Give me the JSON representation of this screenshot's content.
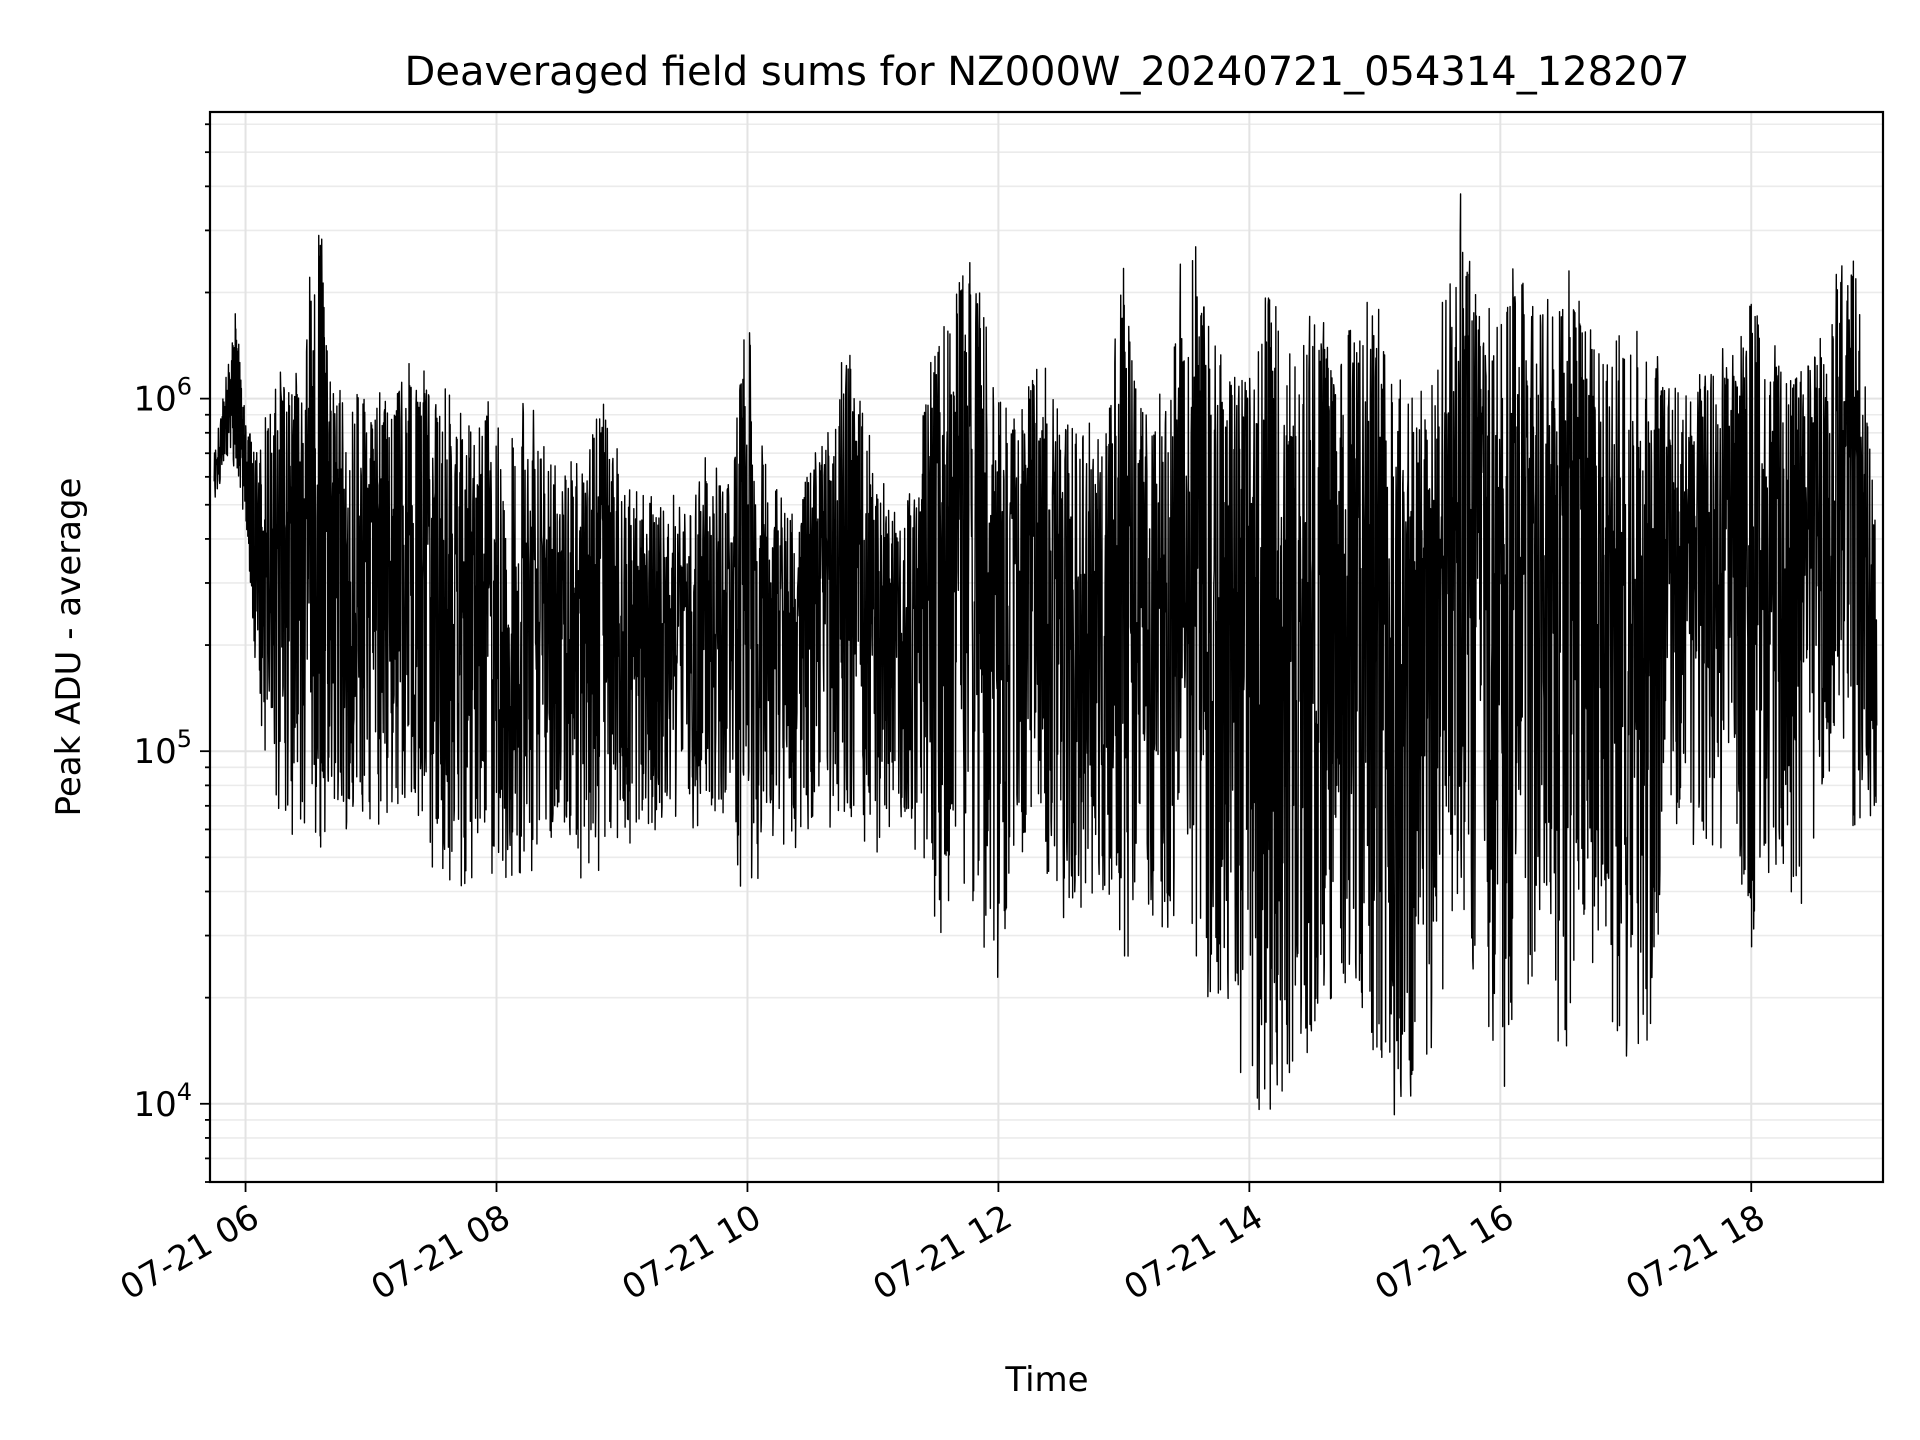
{
  "chart_data": {
    "type": "line",
    "title": "Deaveraged field sums for NZ000W_20240721_054314_128207",
    "xlabel": "Time",
    "ylabel": "Peak ADU - average",
    "yscale": "log",
    "ylim": [
      6000,
      6500000
    ],
    "xlim": [
      "2024-07-21 05:43",
      "2024-07-21 19:03"
    ],
    "grid": true,
    "line_color": "#000000",
    "x_ticks": [
      {
        "value": "2024-07-21 06:00",
        "label": "07-21 06"
      },
      {
        "value": "2024-07-21 08:00",
        "label": "07-21 08"
      },
      {
        "value": "2024-07-21 10:00",
        "label": "07-21 10"
      },
      {
        "value": "2024-07-21 12:00",
        "label": "07-21 12"
      },
      {
        "value": "2024-07-21 14:00",
        "label": "07-21 14"
      },
      {
        "value": "2024-07-21 16:00",
        "label": "07-21 16"
      },
      {
        "value": "2024-07-21 18:00",
        "label": "07-21 18"
      }
    ],
    "y_ticks": [
      {
        "value": 10000,
        "base": "10",
        "exp": "4"
      },
      {
        "value": 100000,
        "base": "10",
        "exp": "5"
      },
      {
        "value": 1000000,
        "base": "10",
        "exp": "6"
      }
    ],
    "series": [
      {
        "x": [
          "2024-07-21 05:45",
          "2024-07-21 05:55",
          "2024-07-21 06:00",
          "2024-07-21 06:05",
          "2024-07-21 06:15",
          "2024-07-21 06:25",
          "2024-07-21 06:35",
          "2024-07-21 06:40",
          "2024-07-21 06:50",
          "2024-07-21 07:00",
          "2024-07-21 07:10",
          "2024-07-21 07:20",
          "2024-07-21 07:30",
          "2024-07-21 07:40",
          "2024-07-21 07:50",
          "2024-07-21 08:00",
          "2024-07-21 08:10",
          "2024-07-21 08:20",
          "2024-07-21 08:30",
          "2024-07-21 08:40",
          "2024-07-21 08:50",
          "2024-07-21 09:00",
          "2024-07-21 09:10",
          "2024-07-21 09:20",
          "2024-07-21 09:30",
          "2024-07-21 09:40",
          "2024-07-21 09:50",
          "2024-07-21 10:00",
          "2024-07-21 10:10",
          "2024-07-21 10:20",
          "2024-07-21 10:30",
          "2024-07-21 10:40",
          "2024-07-21 10:50",
          "2024-07-21 11:00",
          "2024-07-21 11:10",
          "2024-07-21 11:20",
          "2024-07-21 11:30",
          "2024-07-21 11:40",
          "2024-07-21 11:50",
          "2024-07-21 12:00",
          "2024-07-21 12:10",
          "2024-07-21 12:20",
          "2024-07-21 12:30",
          "2024-07-21 12:40",
          "2024-07-21 12:50",
          "2024-07-21 13:00",
          "2024-07-21 13:10",
          "2024-07-21 13:20",
          "2024-07-21 13:30",
          "2024-07-21 13:40",
          "2024-07-21 13:50",
          "2024-07-21 14:00",
          "2024-07-21 14:10",
          "2024-07-21 14:20",
          "2024-07-21 14:30",
          "2024-07-21 14:40",
          "2024-07-21 14:50",
          "2024-07-21 15:00",
          "2024-07-21 15:10",
          "2024-07-21 15:20",
          "2024-07-21 15:30",
          "2024-07-21 15:40",
          "2024-07-21 15:50",
          "2024-07-21 16:00",
          "2024-07-21 16:10",
          "2024-07-21 16:20",
          "2024-07-21 16:30",
          "2024-07-21 16:40",
          "2024-07-21 16:50",
          "2024-07-21 17:00",
          "2024-07-21 17:10",
          "2024-07-21 17:20",
          "2024-07-21 17:30",
          "2024-07-21 17:40",
          "2024-07-21 17:50",
          "2024-07-21 18:00",
          "2024-07-21 18:10",
          "2024-07-21 18:20",
          "2024-07-21 18:30",
          "2024-07-21 18:40",
          "2024-07-21 18:50",
          "2024-07-21 19:00"
        ],
        "high": [
          700000,
          1900000,
          950000,
          700000,
          1200000,
          1250000,
          4500000,
          1300000,
          1200000,
          1100000,
          1100000,
          1500000,
          1100000,
          1050000,
          1050000,
          1000000,
          1000000,
          1050000,
          650000,
          700000,
          1100000,
          650000,
          600000,
          550000,
          550000,
          700000,
          600000,
          1800000,
          600000,
          500000,
          700000,
          1000000,
          1700000,
          700000,
          500000,
          600000,
          1700000,
          2400000,
          3200000,
          1000000,
          900000,
          1500000,
          1000000,
          900000,
          800000,
          2500000,
          900000,
          1100000,
          3400000,
          2000000,
          1200000,
          1400000,
          2200000,
          1500000,
          2200000,
          1400000,
          1700000,
          2000000,
          1300000,
          1300000,
          1500000,
          4200000,
          1800000,
          2000000,
          2700000,
          1800000,
          2500000,
          2000000,
          1500000,
          1600000,
          1600000,
          1200000,
          1000000,
          1600000,
          1300000,
          2000000,
          1500000,
          1300000,
          1600000,
          2300000,
          2900000,
          400000
        ],
        "low": [
          500000,
          600000,
          450000,
          150000,
          55000,
          55000,
          50000,
          60000,
          60000,
          60000,
          60000,
          55000,
          45000,
          40000,
          40000,
          40000,
          42000,
          45000,
          60000,
          40000,
          45000,
          55000,
          50000,
          55000,
          60000,
          60000,
          65000,
          30000,
          60000,
          50000,
          60000,
          60000,
          55000,
          50000,
          55000,
          50000,
          25000,
          45000,
          30000,
          20000,
          50000,
          55000,
          30000,
          30000,
          28000,
          25000,
          30000,
          30000,
          30000,
          20000,
          18000,
          9000,
          9000,
          12000,
          12000,
          18000,
          20000,
          13000,
          9000,
          9000,
          15000,
          25000,
          20000,
          10000,
          9000,
          30000,
          12000,
          25000,
          20000,
          13000,
          12000,
          50000,
          55000,
          45000,
          55000,
          27000,
          50000,
          30000,
          45000,
          100000,
          55000,
          35000
        ]
      }
    ]
  }
}
